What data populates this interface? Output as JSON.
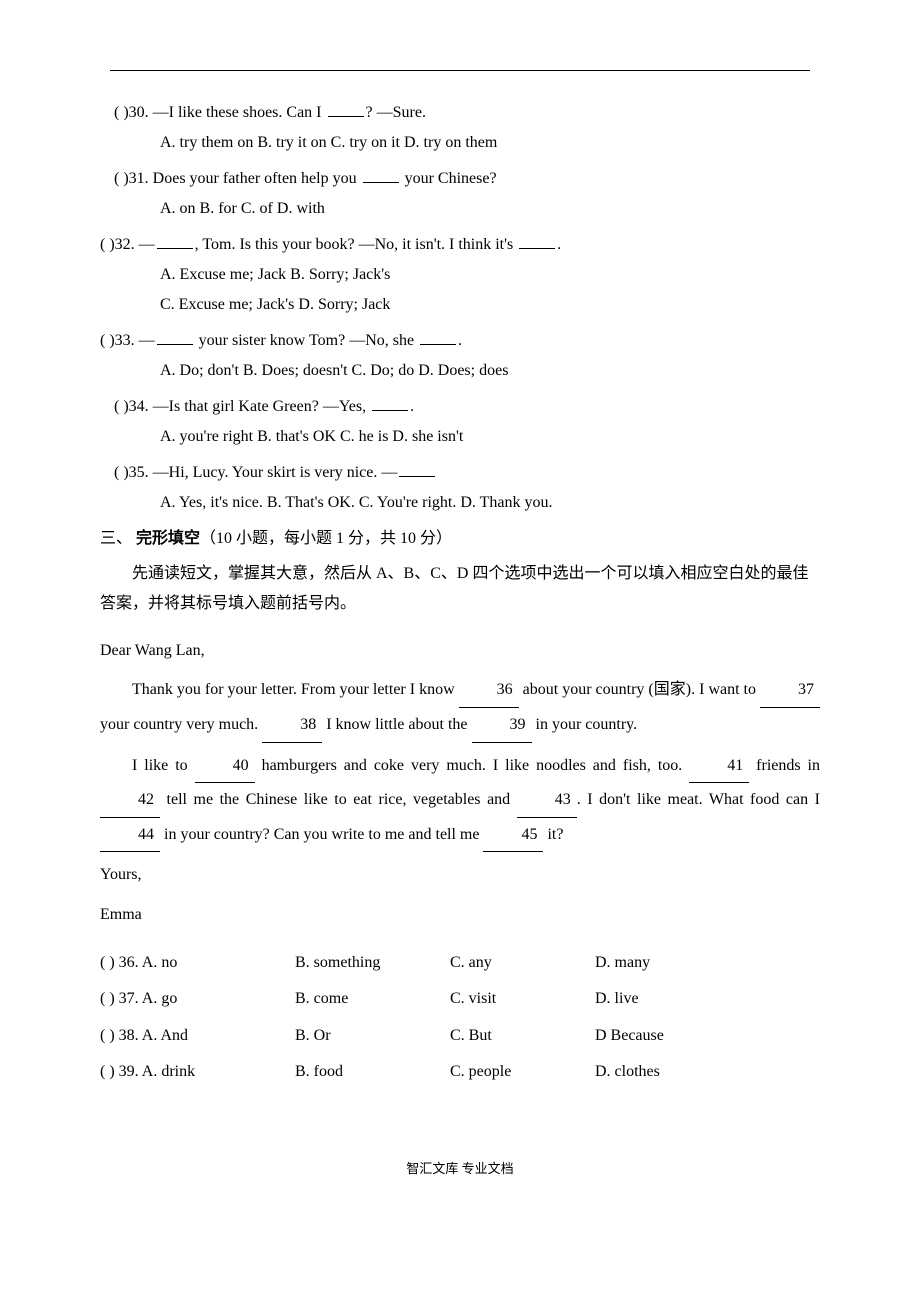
{
  "topRule": true,
  "questions": [
    {
      "num": "30",
      "stemPrefix": "(       )30. —I like these shoes. Can I ",
      "stemSuffix": "?     —Sure.",
      "options": "A. try them on               B. try it on         C. try on it         D. try on them",
      "stemIndent": "indent1",
      "optIndent": "indent2"
    },
    {
      "num": "31",
      "stemPrefix": "(       )31. Does your father often help you ",
      "stemSuffix": " your Chinese?",
      "options": "A. on                   B. for                   C. of                      D. with",
      "stemIndent": "indent1",
      "optIndent": "indent2"
    },
    {
      "num": "32",
      "stemPrefix": "(       )32. —",
      "stemMid": ", Tom. Is this your book?     —No, it isn't. I think it's ",
      "stemSuffix": ".",
      "optionsLines": [
        "A. Excuse me;     Jack           B. Sorry;     Jack's",
        "C. Excuse me;     Jack's         D. Sorry;     Jack"
      ],
      "stemIndent": "",
      "optIndent": "indent2"
    },
    {
      "num": "33",
      "stemPrefix": "(       )33. —",
      "stemMid": " your sister know Tom?       —No, she ",
      "stemSuffix": ".",
      "options": "A. Do; don't     B. Does; doesn't       C. Do; do               D. Does; does",
      "stemIndent": "",
      "optIndent": "indent2"
    },
    {
      "num": "34",
      "stemPrefix": "(       )34. —Is that girl Kate Green?       —Yes, ",
      "stemSuffix": ".",
      "options": "A. you're right         B. that's OK       C. he is        D. she isn't",
      "stemIndent": "indent1",
      "optIndent": "indent2"
    },
    {
      "num": "35",
      "stemPrefix": "(       )35. —Hi, Lucy. Your skirt is very nice.      —",
      "stemSuffix": "",
      "options": "A. Yes, it's nice.     B. That's OK.         C. You're right.       D. Thank you.",
      "stemIndent": "indent1",
      "optIndent": "indent3"
    }
  ],
  "section": {
    "num": "三、",
    "title": "完形填空",
    "note": "（10 小题，每小题 1 分，共 10 分）"
  },
  "instruction": "先通读短文，掌握其大意，然后从 A、B、C、D 四个选项中选出一个可以填入相应空白处的最佳答案，并将其标号填入题前括号内。",
  "passage": {
    "greeting": "Dear Wang Lan,",
    "para1_a": "Thank you for your letter. From your letter I know ",
    "b36": "36",
    "para1_b": " about your country (国家). I want to ",
    "b37": "37",
    "para1_c": " your country very much. ",
    "b38": "38",
    "para1_d": " I know little about the ",
    "b39": "39",
    "para1_e": " in your country.",
    "para2_a": "I like to ",
    "b40": "40",
    "para2_b": " hamburgers and coke very much. I like noodles and fish, too. ",
    "b41": "41",
    "para2_c": " friends in ",
    "b42": "42",
    "para2_d": " tell me the Chinese like to eat rice, vegetables and ",
    "b43": "43",
    "para2_e": ". I don't like meat. What food can I ",
    "b44": "44",
    "para2_f": " in your country? Can you write to me and tell me ",
    "b45": "45",
    "para2_g": " it?",
    "closing": "Yours,",
    "signature": "Emma"
  },
  "clozeOptions": [
    {
      "l": "(     ) 36. A. no",
      "b": "B. something",
      "c": "C. any",
      "d": "D. many"
    },
    {
      "l": "(     ) 37. A. go",
      "b": "B. come",
      "c": "C. visit",
      "d": "D. live"
    },
    {
      "l": "(     ) 38. A. And",
      "b": "B. Or",
      "c": "C. But",
      "d": "D Because"
    },
    {
      "l": "(     ) 39. A. drink",
      "b": "B. food",
      "c": "C. people",
      "d": "D. clothes"
    }
  ],
  "footer": "智汇文库 专业文档"
}
